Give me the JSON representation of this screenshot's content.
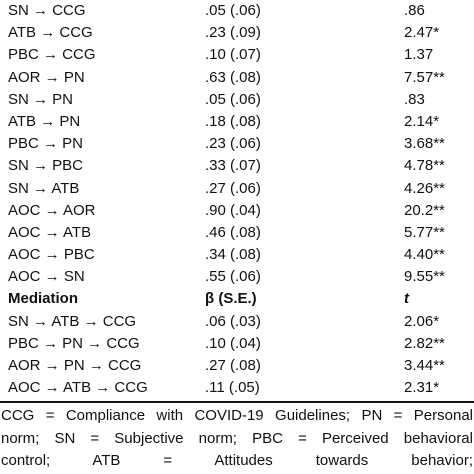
{
  "rows": [
    {
      "path": "SN → CCG",
      "beta": ".05 (.06)",
      "t": ".86"
    },
    {
      "path": "ATB → CCG",
      "beta": ".23 (.09)",
      "t": "2.47*"
    },
    {
      "path": "PBC → CCG",
      "beta": ".10 (.07)",
      "t": "1.37"
    },
    {
      "path": "AOR → PN",
      "beta": ".63 (.08)",
      "t": "7.57**"
    },
    {
      "path": "SN → PN",
      "beta": ".05 (.06)",
      "t": ".83"
    },
    {
      "path": "ATB → PN",
      "beta": ".18 (.08)",
      "t": "2.14*"
    },
    {
      "path": "PBC → PN",
      "beta": ".23 (.06)",
      "t": "3.68**"
    },
    {
      "path": "SN → PBC",
      "beta": ".33 (.07)",
      "t": "4.78**"
    },
    {
      "path": "SN → ATB",
      "beta": ".27 (.06)",
      "t": "4.26**"
    },
    {
      "path": "AOC → AOR",
      "beta": ".90 (.04)",
      "t": "20.2**"
    },
    {
      "path": "AOC → ATB",
      "beta": ".46 (.08)",
      "t": "5.77**"
    },
    {
      "path": "AOC → PBC",
      "beta": ".34 (.08)",
      "t": "4.40**"
    },
    {
      "path": "AOC → SN",
      "beta": ".55 (.06)",
      "t": "9.55**"
    }
  ],
  "mediation_header": {
    "label": "Mediation",
    "beta": "β (S.E.)",
    "t": "t"
  },
  "mediation_rows": [
    {
      "path": "SN → ATB → CCG",
      "beta": ".06 (.03)",
      "t": "2.06*"
    },
    {
      "path": "PBC → PN → CCG",
      "beta": ".10 (.04)",
      "t": "2.82**"
    },
    {
      "path": "AOR → PN → CCG",
      "beta": ".27 (.08)",
      "t": "3.44**"
    },
    {
      "path": "AOC → ATB → CCG",
      "beta": ".11 (.05)",
      "t": "2.31*"
    }
  ],
  "note_lines": [
    "CCG = Compliance with COVID-19 Guidelines; PN = Personal",
    "norm; SN = Subjective norm; PBC = Perceived behavioral",
    "control; ATB = Attitudes towards behavior;"
  ]
}
